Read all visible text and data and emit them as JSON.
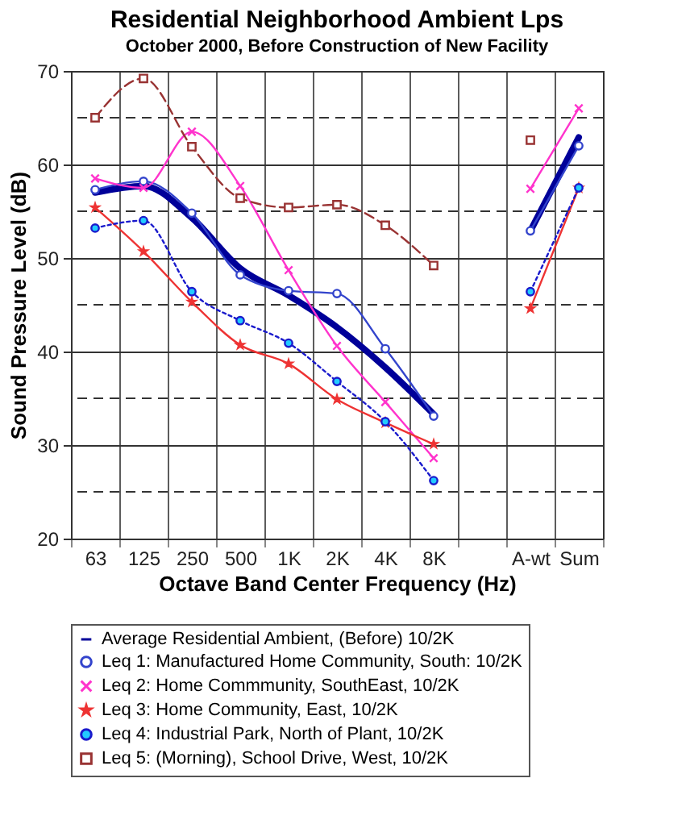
{
  "chart_data": {
    "type": "line",
    "title": "Residential Neighborhood Ambient Lps",
    "subtitle": "October 2000, Before Construction of New Facility",
    "xlabel": "Octave Band Center Frequency (Hz)",
    "ylabel": "Sound Pressure Level (dB)",
    "categories": [
      "63",
      "125",
      "250",
      "500",
      "1K",
      "2K",
      "4K",
      "8K",
      null,
      "A-wt",
      "Sum"
    ],
    "ylim": [
      20,
      70
    ],
    "yticks": [
      20,
      {
        "value": 25,
        "label": null
      },
      30,
      {
        "value": 35,
        "label": null
      },
      40,
      {
        "value": 45,
        "label": null
      },
      50,
      {
        "value": 55,
        "label": null
      },
      60,
      {
        "value": 65,
        "label": null
      },
      70
    ],
    "grid": true,
    "legend": "bottom",
    "series": [
      {
        "name": "Average Residential Ambient, (Before) 10/2K",
        "color": "#000099",
        "marker": "none",
        "line_style": "solid",
        "values": [
          57.0,
          57.7,
          54.3,
          48.9,
          46.0,
          42.6,
          38.3,
          33.3,
          null,
          52.9,
          62.9
        ]
      },
      {
        "name": "Leq 1: Manufactured Home Community, South: 10/2K",
        "color": "#3344cc",
        "marker": "circle",
        "line_style": "solid",
        "values": [
          57.3,
          58.2,
          54.8,
          48.2,
          46.5,
          46.2,
          40.3,
          33.1,
          null,
          52.9,
          62.0
        ]
      },
      {
        "name": "Leq 2: Home Commmunity, SouthEast, 10/2K",
        "color": "#ff33cc",
        "marker": "cross",
        "line_style": "solid",
        "values": [
          58.5,
          57.5,
          63.5,
          57.7,
          48.7,
          40.6,
          34.6,
          28.6,
          null,
          57.4,
          66.0
        ]
      },
      {
        "name": "Leq 3: Home Community, East, 10/2K",
        "color": "#ee3333",
        "marker": "star",
        "line_style": "solid",
        "values": [
          55.4,
          50.7,
          45.3,
          40.7,
          38.7,
          34.9,
          32.4,
          30.1,
          null,
          44.6,
          57.5
        ]
      },
      {
        "name": "Leq 4: Industrial Park, North of Plant, 10/2K",
        "color": "#1a1acc",
        "marker": "circle",
        "line_style": "dotted",
        "values": [
          53.2,
          54.0,
          46.4,
          43.3,
          40.9,
          36.8,
          32.5,
          26.2,
          null,
          46.4,
          57.5
        ]
      },
      {
        "name": "Leq 5: (Morning), School Drive, West, 10/2K",
        "color": "#993333",
        "marker": "square",
        "line_style": "dashed",
        "values": [
          65.0,
          69.2,
          61.9,
          56.4,
          55.4,
          55.7,
          53.5,
          49.2,
          null,
          62.6,
          null
        ]
      }
    ]
  }
}
